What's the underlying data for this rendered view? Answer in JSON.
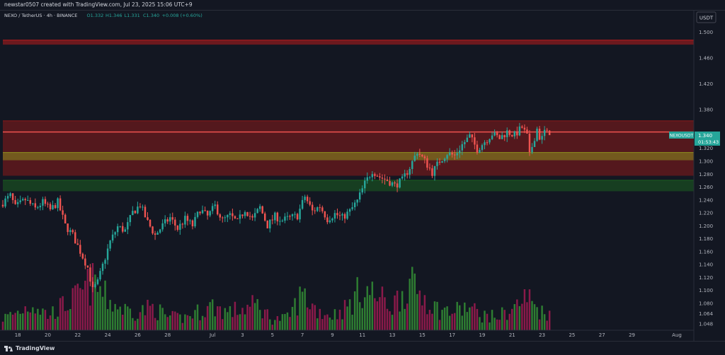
{
  "header": {
    "attribution": "newstar0507 created with TradingView.com, Jul 23, 2025 15:06 UTC+9"
  },
  "footer": {
    "brand": "TradingView",
    "logo_icon": "tradingview-logo-icon"
  },
  "chart_data": {
    "type": "candlestick",
    "title": "",
    "symbol_line": {
      "name": "NEXO / TetherUS · 4h · BINANCE",
      "open": "O1.332",
      "high": "H1.346",
      "low": "L1.331",
      "close": "C1.340",
      "change": "+0.008 (+0.60%)"
    },
    "currency": "USDT",
    "ylim": [
      1.04,
      1.525
    ],
    "y_ticks": [
      "1.500",
      "1.460",
      "1.420",
      "1.380",
      "1.340",
      "1.320",
      "1.300",
      "1.280",
      "1.260",
      "1.240",
      "1.220",
      "1.200",
      "1.180",
      "1.160",
      "1.140",
      "1.120",
      "1.100",
      "1.080",
      "1.064",
      "1.048"
    ],
    "x_start": "2025-06-17",
    "x_end": "2025-08-01",
    "x_ticks": [
      {
        "label": "18",
        "date": "2025-06-18"
      },
      {
        "label": "20",
        "date": "2025-06-20"
      },
      {
        "label": "22",
        "date": "2025-06-22"
      },
      {
        "label": "24",
        "date": "2025-06-24"
      },
      {
        "label": "26",
        "date": "2025-06-26"
      },
      {
        "label": "28",
        "date": "2025-06-28"
      },
      {
        "label": "Jul",
        "date": "2025-07-01"
      },
      {
        "label": "3",
        "date": "2025-07-03"
      },
      {
        "label": "5",
        "date": "2025-07-05"
      },
      {
        "label": "7",
        "date": "2025-07-07"
      },
      {
        "label": "9",
        "date": "2025-07-09"
      },
      {
        "label": "11",
        "date": "2025-07-11"
      },
      {
        "label": "13",
        "date": "2025-07-13"
      },
      {
        "label": "15",
        "date": "2025-07-15"
      },
      {
        "label": "17",
        "date": "2025-07-17"
      },
      {
        "label": "19",
        "date": "2025-07-19"
      },
      {
        "label": "21",
        "date": "2025-07-21"
      },
      {
        "label": "23",
        "date": "2025-07-23"
      },
      {
        "label": "25",
        "date": "2025-07-25"
      },
      {
        "label": "27",
        "date": "2025-07-27"
      },
      {
        "label": "29",
        "date": "2025-07-29"
      },
      {
        "label": "Aug",
        "date": "2025-08-01"
      }
    ],
    "colors": {
      "up": "#26a69a",
      "down": "#ef5350",
      "vol_up": "#2e7d32",
      "vol_down": "#8b1a4a",
      "last_price": "#26a69a"
    },
    "zones": [
      {
        "y_top": 1.487,
        "y_bottom": 1.48,
        "color": "#b71c1c"
      },
      {
        "y_top": 1.362,
        "y_bottom": 1.277,
        "color": "#8b1a1a"
      },
      {
        "y_top": 1.345,
        "y_bottom": 1.345,
        "color": "#ef5350"
      },
      {
        "y_top": 1.313,
        "y_bottom": 1.301,
        "color": "#8d8f1f"
      },
      {
        "y_top": 1.27,
        "y_bottom": 1.253,
        "color": "#1b5e20"
      }
    ],
    "price_path": [
      [
        "2025-06-17T00:00",
        1.232
      ],
      [
        "2025-06-17T16:00",
        1.246
      ],
      [
        "2025-06-18T00:00",
        1.228
      ],
      [
        "2025-06-18T16:00",
        1.24
      ],
      [
        "2025-06-19T08:00",
        1.226
      ],
      [
        "2025-06-19T20:00",
        1.236
      ],
      [
        "2025-06-20T08:00",
        1.224
      ],
      [
        "2025-06-20T20:00",
        1.236
      ],
      [
        "2025-06-21T08:00",
        1.2
      ],
      [
        "2025-06-21T20:00",
        1.185
      ],
      [
        "2025-06-22T08:00",
        1.16
      ],
      [
        "2025-06-22T20:00",
        1.135
      ],
      [
        "2025-06-23T04:00",
        1.1
      ],
      [
        "2025-06-23T12:00",
        1.112
      ],
      [
        "2025-06-23T20:00",
        1.138
      ],
      [
        "2025-06-24T08:00",
        1.175
      ],
      [
        "2025-06-24T20:00",
        1.198
      ],
      [
        "2025-06-25T08:00",
        1.192
      ],
      [
        "2025-06-25T20:00",
        1.22
      ],
      [
        "2025-06-26T08:00",
        1.232
      ],
      [
        "2025-06-26T20:00",
        1.205
      ],
      [
        "2025-06-27T08:00",
        1.185
      ],
      [
        "2025-06-27T20:00",
        1.2
      ],
      [
        "2025-06-28T08:00",
        1.212
      ],
      [
        "2025-06-28T20:00",
        1.195
      ],
      [
        "2025-06-29T08:00",
        1.21
      ],
      [
        "2025-06-29T20:00",
        1.2
      ],
      [
        "2025-06-30T08:00",
        1.225
      ],
      [
        "2025-06-30T20:00",
        1.214
      ],
      [
        "2025-07-01T08:00",
        1.23
      ],
      [
        "2025-07-01T20:00",
        1.208
      ],
      [
        "2025-07-02T08:00",
        1.215
      ],
      [
        "2025-07-02T20:00",
        1.205
      ],
      [
        "2025-07-03T08:00",
        1.225
      ],
      [
        "2025-07-03T20:00",
        1.21
      ],
      [
        "2025-07-04T08:00",
        1.228
      ],
      [
        "2025-07-04T20:00",
        1.2
      ],
      [
        "2025-07-05T08:00",
        1.214
      ],
      [
        "2025-07-05T20:00",
        1.208
      ],
      [
        "2025-07-06T08:00",
        1.212
      ],
      [
        "2025-07-06T20:00",
        1.215
      ],
      [
        "2025-07-07T08:00",
        1.245
      ],
      [
        "2025-07-07T20:00",
        1.222
      ],
      [
        "2025-07-08T08:00",
        1.23
      ],
      [
        "2025-07-08T20:00",
        1.21
      ],
      [
        "2025-07-09T08:00",
        1.218
      ],
      [
        "2025-07-09T20:00",
        1.212
      ],
      [
        "2025-07-10T08:00",
        1.222
      ],
      [
        "2025-07-10T20:00",
        1.238
      ],
      [
        "2025-07-11T08:00",
        1.265
      ],
      [
        "2025-07-11T20:00",
        1.285
      ],
      [
        "2025-07-12T08:00",
        1.275
      ],
      [
        "2025-07-12T20:00",
        1.27
      ],
      [
        "2025-07-13T08:00",
        1.262
      ],
      [
        "2025-07-13T20:00",
        1.27
      ],
      [
        "2025-07-14T08:00",
        1.29
      ],
      [
        "2025-07-14T20:00",
        1.315
      ],
      [
        "2025-07-15T08:00",
        1.3
      ],
      [
        "2025-07-15T20:00",
        1.282
      ],
      [
        "2025-07-16T08:00",
        1.3
      ],
      [
        "2025-07-16T20:00",
        1.312
      ],
      [
        "2025-07-17T08:00",
        1.308
      ],
      [
        "2025-07-17T20:00",
        1.325
      ],
      [
        "2025-07-18T08:00",
        1.338
      ],
      [
        "2025-07-18T20:00",
        1.318
      ],
      [
        "2025-07-19T08:00",
        1.33
      ],
      [
        "2025-07-19T20:00",
        1.342
      ],
      [
        "2025-07-20T08:00",
        1.335
      ],
      [
        "2025-07-20T20:00",
        1.345
      ],
      [
        "2025-07-21T08:00",
        1.34
      ],
      [
        "2025-07-21T20:00",
        1.352
      ],
      [
        "2025-07-22T04:00",
        1.338
      ],
      [
        "2025-07-22T08:00",
        1.308
      ],
      [
        "2025-07-22T14:00",
        1.33
      ],
      [
        "2025-07-22T20:00",
        1.35
      ],
      [
        "2025-07-23T02:00",
        1.33
      ],
      [
        "2025-07-23T08:00",
        1.346
      ],
      [
        "2025-07-23T14:00",
        1.34
      ]
    ],
    "volume_path": [
      [
        "2025-06-17T00:00",
        0.2
      ],
      [
        "2025-06-18T00:00",
        0.3
      ],
      [
        "2025-06-19T00:00",
        0.45
      ],
      [
        "2025-06-20T00:00",
        0.25
      ],
      [
        "2025-06-21T00:00",
        0.4
      ],
      [
        "2025-06-22T00:00",
        0.55
      ],
      [
        "2025-06-23T00:00",
        0.8
      ],
      [
        "2025-06-24T00:00",
        0.5
      ],
      [
        "2025-06-25T00:00",
        0.35
      ],
      [
        "2025-06-26T00:00",
        0.3
      ],
      [
        "2025-06-27T00:00",
        0.38
      ],
      [
        "2025-06-28T00:00",
        0.22
      ],
      [
        "2025-06-29T00:00",
        0.2
      ],
      [
        "2025-06-30T00:00",
        0.3
      ],
      [
        "2025-07-01T00:00",
        0.4
      ],
      [
        "2025-07-02T00:00",
        0.3
      ],
      [
        "2025-07-03T00:00",
        0.35
      ],
      [
        "2025-07-04T00:00",
        0.42
      ],
      [
        "2025-07-05T00:00",
        0.18
      ],
      [
        "2025-07-06T00:00",
        0.2
      ],
      [
        "2025-07-07T00:00",
        0.6
      ],
      [
        "2025-07-08T00:00",
        0.32
      ],
      [
        "2025-07-09T00:00",
        0.25
      ],
      [
        "2025-07-10T00:00",
        0.38
      ],
      [
        "2025-07-11T00:00",
        0.7
      ],
      [
        "2025-07-12T00:00",
        0.55
      ],
      [
        "2025-07-13T00:00",
        0.4
      ],
      [
        "2025-07-14T00:00",
        0.75
      ],
      [
        "2025-07-15T00:00",
        0.6
      ],
      [
        "2025-07-16T00:00",
        0.35
      ],
      [
        "2025-07-17T00:00",
        0.3
      ],
      [
        "2025-07-18T00:00",
        0.38
      ],
      [
        "2025-07-19T00:00",
        0.25
      ],
      [
        "2025-07-20T00:00",
        0.22
      ],
      [
        "2025-07-21T00:00",
        0.35
      ],
      [
        "2025-07-22T00:00",
        0.55
      ],
      [
        "2025-07-23T00:00",
        0.3
      ]
    ],
    "last_price": {
      "label": "NEXOUSDT",
      "value": "1.340",
      "countdown": "01:53:43",
      "y": 1.34
    }
  }
}
